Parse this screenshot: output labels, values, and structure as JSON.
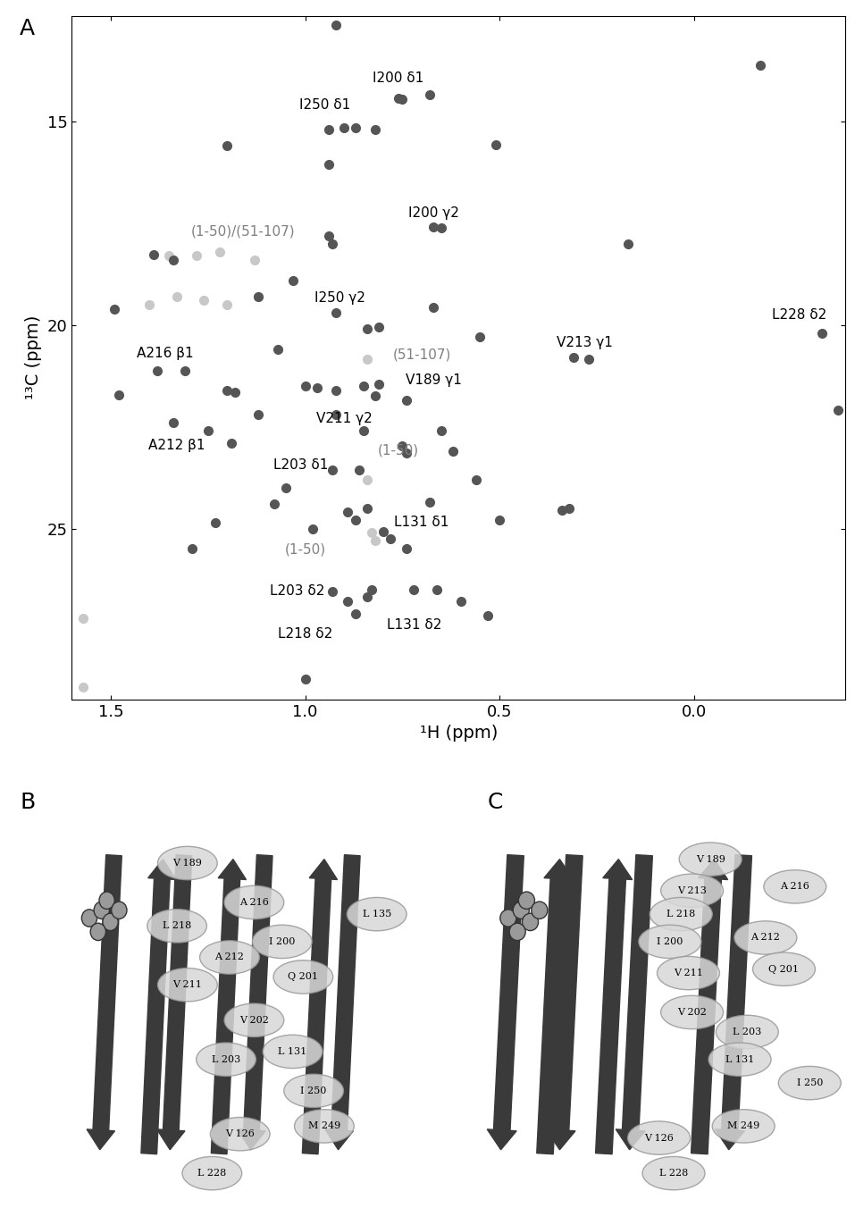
{
  "panel_labels": [
    "A",
    "B",
    "C"
  ],
  "chart_data": {
    "type": "scatter",
    "x_label": "¹H (ppm)",
    "y_label": "¹³C (ppm)",
    "xlim": [
      1.6,
      -0.39
    ],
    "ylim": [
      29.2,
      12.4
    ],
    "xticks": [
      1.5,
      1.0,
      0.5,
      0.0
    ],
    "yticks": [
      15,
      20,
      25
    ],
    "grid": false,
    "series": [
      {
        "color": "#555555",
        "marker": "o",
        "x": [
          0.92,
          0.76,
          0.75,
          0.68,
          -0.17,
          0.94,
          0.9,
          0.87,
          0.82,
          0.51,
          1.2,
          0.94,
          0.67,
          0.65,
          0.17,
          0.94,
          0.93,
          1.39,
          1.34,
          1.03,
          1.12,
          1.49,
          0.92,
          0.67,
          0.84,
          0.81,
          0.55,
          0.31,
          0.27,
          -0.33,
          -0.37,
          1.38,
          1.31,
          1.07,
          1.2,
          1.18,
          1.48,
          1.34,
          1.25,
          1.19,
          1.12,
          1.0,
          0.97,
          0.92,
          0.85,
          0.81,
          0.82,
          0.74,
          0.92,
          0.85,
          0.65,
          0.62,
          0.75,
          0.74,
          0.93,
          0.86,
          0.56,
          1.05,
          1.08,
          0.89,
          0.87,
          0.84,
          0.68,
          0.5,
          0.34,
          0.32,
          1.23,
          1.29,
          0.98,
          0.8,
          0.78,
          0.74,
          0.93,
          0.83,
          0.72,
          0.66,
          0.6,
          0.53,
          0.89,
          0.87,
          0.84,
          1.0
        ],
        "y": [
          12.62,
          14.43,
          14.45,
          14.34,
          13.62,
          15.2,
          15.15,
          15.15,
          15.2,
          15.57,
          15.6,
          16.06,
          17.6,
          17.62,
          18.0,
          17.8,
          18.0,
          18.28,
          18.4,
          18.9,
          19.3,
          19.6,
          19.7,
          19.57,
          20.1,
          20.05,
          20.3,
          20.8,
          20.85,
          20.2,
          22.1,
          21.13,
          21.13,
          20.6,
          21.6,
          21.65,
          21.72,
          22.4,
          22.6,
          22.9,
          22.2,
          21.5,
          21.55,
          21.6,
          21.5,
          21.45,
          21.75,
          21.85,
          22.2,
          22.6,
          22.6,
          23.1,
          22.96,
          23.15,
          23.57,
          23.57,
          23.8,
          24.0,
          24.4,
          24.6,
          24.8,
          24.5,
          24.35,
          24.8,
          24.55,
          24.5,
          24.85,
          25.5,
          25.0,
          25.07,
          25.25,
          25.5,
          26.55,
          26.5,
          26.5,
          26.5,
          26.8,
          27.15,
          26.8,
          27.1,
          26.67,
          28.7
        ],
        "annotations": [
          {
            "text": "I200 δ1",
            "x": 0.76,
            "y": 13.94
          },
          {
            "text": "I250 δ1",
            "x": 0.95,
            "y": 14.6
          },
          {
            "text": "I200 γ2",
            "x": 0.67,
            "y": 17.24
          },
          {
            "text": "I250 γ2",
            "x": 0.91,
            "y": 19.34
          },
          {
            "text": "L228 δ2",
            "x": -0.27,
            "y": 19.75
          },
          {
            "text": "V213 γ1",
            "x": 0.28,
            "y": 20.43
          },
          {
            "text": "A216 β1",
            "x": 1.36,
            "y": 20.7
          },
          {
            "text": "V189 γ1",
            "x": 0.67,
            "y": 21.35
          },
          {
            "text": "V211 γ2",
            "x": 0.9,
            "y": 22.3
          },
          {
            "text": "A212 β1",
            "x": 1.33,
            "y": 22.95
          },
          {
            "text": "L203 δ1",
            "x": 1.01,
            "y": 23.44
          },
          {
            "text": "L131 δ1",
            "x": 0.7,
            "y": 24.85
          },
          {
            "text": "L203 δ2",
            "x": 1.02,
            "y": 26.54
          },
          {
            "text": "L131 δ2",
            "x": 0.72,
            "y": 27.38
          },
          {
            "text": "L218 δ2",
            "x": 1.0,
            "y": 27.6
          }
        ]
      },
      {
        "color": "#c8c8c8",
        "marker": "o",
        "x": [
          1.35,
          1.28,
          1.22,
          1.13,
          1.4,
          1.33,
          1.26,
          1.2,
          1.12,
          0.84,
          0.84,
          0.83,
          0.82,
          1.57,
          1.57
        ],
        "y": [
          18.3,
          18.3,
          18.2,
          18.4,
          19.5,
          19.3,
          19.4,
          19.5,
          19.3,
          20.85,
          23.8,
          25.1,
          25.3,
          27.2,
          28.9
        ],
        "annotations": [
          {
            "text": "(1-50)/(51-107)",
            "x": 1.16,
            "y": 17.7
          },
          {
            "text": "(51-107)",
            "x": 0.7,
            "y": 20.72
          },
          {
            "text": "(1-50)",
            "x": 0.76,
            "y": 23.08
          },
          {
            "text": "(1-50)",
            "x": 1.0,
            "y": 25.52
          }
        ]
      }
    ]
  },
  "structures": [
    {
      "panel": "B",
      "residues": [
        "V 189",
        "L 218",
        "A 216",
        "I 200",
        "L 135",
        "A 212",
        "V 211",
        "Q 201",
        "V 202",
        "L 203",
        "L 131",
        "I 250",
        "V 126",
        "M 249",
        "L 228"
      ]
    },
    {
      "panel": "C",
      "residues": [
        "V 189",
        "V 213",
        "A 216",
        "L 218",
        "I 200",
        "A 212",
        "V 211",
        "Q 201",
        "V 202",
        "L 203",
        "L 131",
        "I 250",
        "V 126",
        "M 249",
        "L 228"
      ]
    }
  ]
}
